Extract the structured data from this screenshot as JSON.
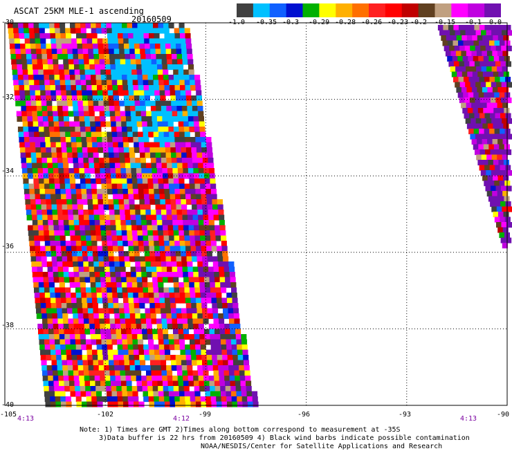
{
  "header": {
    "title": "ASCAT 25KM MLE-1 ascending",
    "date": "20160509"
  },
  "colorbar": {
    "colors": [
      "#404040",
      "#00c0ff",
      "#1060ff",
      "#0010d0",
      "#00b000",
      "#ffff00",
      "#ffb000",
      "#ff7000",
      "#ff2020",
      "#ff0000",
      "#c00000",
      "#604020",
      "#c0a080",
      "#ff00ff",
      "#c000e0",
      "#7010b0"
    ],
    "tick_labels": [
      "-1.0",
      "-0.35",
      "-0.3",
      "-0.29",
      "-0.28",
      "-0.26",
      "-0.23",
      "-0.2",
      "-0.15",
      "-0.1",
      "0.0"
    ]
  },
  "axes": {
    "y_labels": [
      "-30",
      "-32",
      "-34",
      "-36",
      "-38",
      "-40"
    ],
    "x_labels": [
      "-105",
      "-102",
      "-99",
      "-96",
      "-93",
      "-90"
    ],
    "x_range": [
      -105,
      -90
    ],
    "y_range": [
      -40,
      -30
    ]
  },
  "time_labels": [
    "4:13",
    "4:12",
    "4:13"
  ],
  "notes": {
    "line1": "Note: 1) Times are GMT 2)Times along bottom correspond to measurement at -35S",
    "line2": "3)Data buffer is 22 hrs from 20160509 4) Black wind barbs indicate possible contamination",
    "line3": "NOAA/NESDIS/Center for Satellite Applications and Research"
  }
}
